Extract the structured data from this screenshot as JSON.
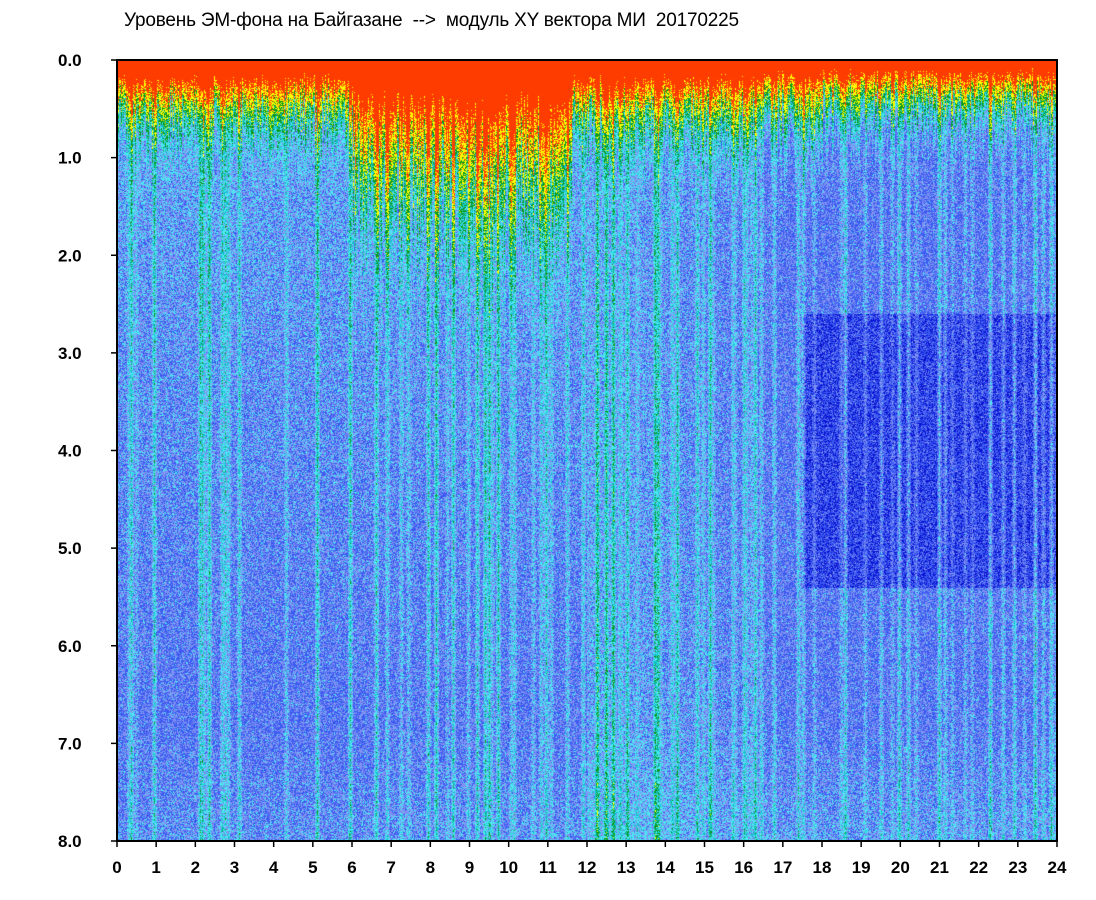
{
  "chart_data": {
    "type": "heatmap",
    "title": "Уровень ЭМ-фона на Байгазане  -->  модуль XY вектора МИ  20170225",
    "xlabel": "",
    "ylabel": "",
    "x_range": [
      0,
      24
    ],
    "y_range": [
      0.0,
      8.0
    ],
    "y_inverted": true,
    "x_ticks": [
      "0",
      "1",
      "2",
      "3",
      "4",
      "5",
      "6",
      "7",
      "8",
      "9",
      "10",
      "11",
      "12",
      "13",
      "14",
      "15",
      "16",
      "17",
      "18",
      "19",
      "20",
      "21",
      "22",
      "23",
      "24"
    ],
    "y_ticks": [
      "0.0",
      "1.0",
      "2.0",
      "3.0",
      "4.0",
      "5.0",
      "6.0",
      "7.0",
      "8.0"
    ],
    "colorscale": [
      "#0a14d2",
      "#3c5af0",
      "#7f92f2",
      "#4fe6f2",
      "#12c0c8",
      "#0a9a1e",
      "#ffff00",
      "#ff3c00"
    ],
    "legend": "none",
    "grid": false
  }
}
